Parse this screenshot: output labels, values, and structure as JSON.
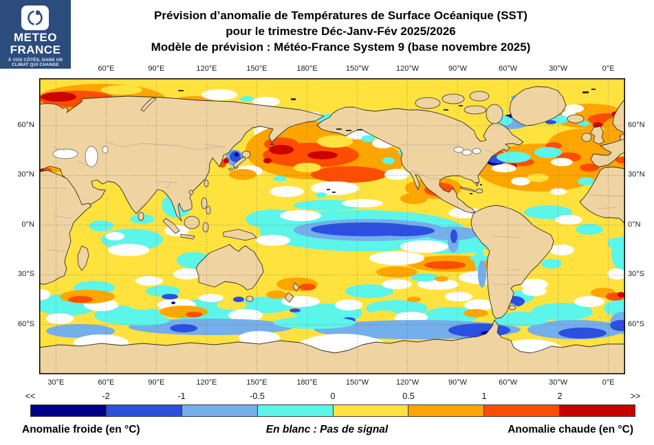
{
  "logo": {
    "brand_line1": "METEO",
    "brand_line2": "FRANCE",
    "tagline_line1": "À VOS CÔTÉS, DANS UN",
    "tagline_line2": "CLIMAT QUI CHANGE",
    "brand_color": "#2B4C7D"
  },
  "title": {
    "line1": "Prévision d’anomalie de Températures de Surface Océanique (SST)",
    "line2": "pour le trimestre Déc-Janv-Fév 2025/2026",
    "line3": "Modèle de prévision : Météo-France System 9 (base novembre 2025)"
  },
  "map": {
    "top_lon_labels": [
      "60°E",
      "90°E",
      "120°E",
      "150°E",
      "180°E",
      "150°W",
      "120°W",
      "90°W",
      "60°W",
      "30°W",
      "0°E"
    ],
    "bottom_lon_labels": [
      "30°E",
      "60°E",
      "90°E",
      "120°E",
      "150°E",
      "180°E",
      "150°W",
      "120°W",
      "90°W",
      "60°W",
      "30°W",
      "0°E"
    ],
    "left_lat_labels": [
      "60°N",
      "30°N",
      "0°N",
      "30°S",
      "60°S"
    ],
    "right_lat_labels": [
      "60°N",
      "30°N",
      "0°N",
      "30°S",
      "60°S"
    ],
    "ocean_color": "#FFE23E",
    "land_color": "#EFD3A1",
    "no_signal_color": "#FFFFFF"
  },
  "colorbar": {
    "tick_labels": [
      "<<",
      "-2",
      "-1",
      "-0.5",
      "0",
      "0.5",
      "1",
      "2",
      ">>"
    ],
    "segment_colors": [
      "#00008B",
      "#2B4FE0",
      "#74AEEB",
      "#5CF5EA",
      "#FFE23E",
      "#FFA500",
      "#FF4D00",
      "#C80000"
    ],
    "cold_label": "Anomalie froide (en °C)",
    "no_signal_label": "En blanc : Pas de signal",
    "warm_label": "Anomalie chaude (en °C)"
  }
}
